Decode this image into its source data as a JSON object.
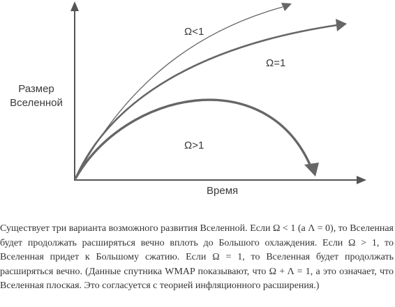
{
  "diagram": {
    "y_axis_label": "Размер Вселенной",
    "x_axis_label": "Время",
    "curves": [
      {
        "label": "Ω<1",
        "shape": "open"
      },
      {
        "label": "Ω=1",
        "shape": "flat"
      },
      {
        "label": "Ω>1",
        "shape": "closed"
      }
    ],
    "colors": {
      "axis": "#555555",
      "curve": "#666666"
    }
  },
  "caption": "Существует три варианта возможного развития Вселенной. Если Ω < 1 (а Λ = 0), то Вселенная будет продолжать расширяться вечно вплоть до Большого охлаждения. Если Ω > 1, то Вселенная придет к Большому сжатию. Если Ω = 1, то Вселенная будет продолжать расширяться вечно. (Данные спутника WMAP показывают, что Ω + Λ = 1, а это означает, что Вселенная плоская. Это согласуется с теорией инфляционного расширения.)"
}
